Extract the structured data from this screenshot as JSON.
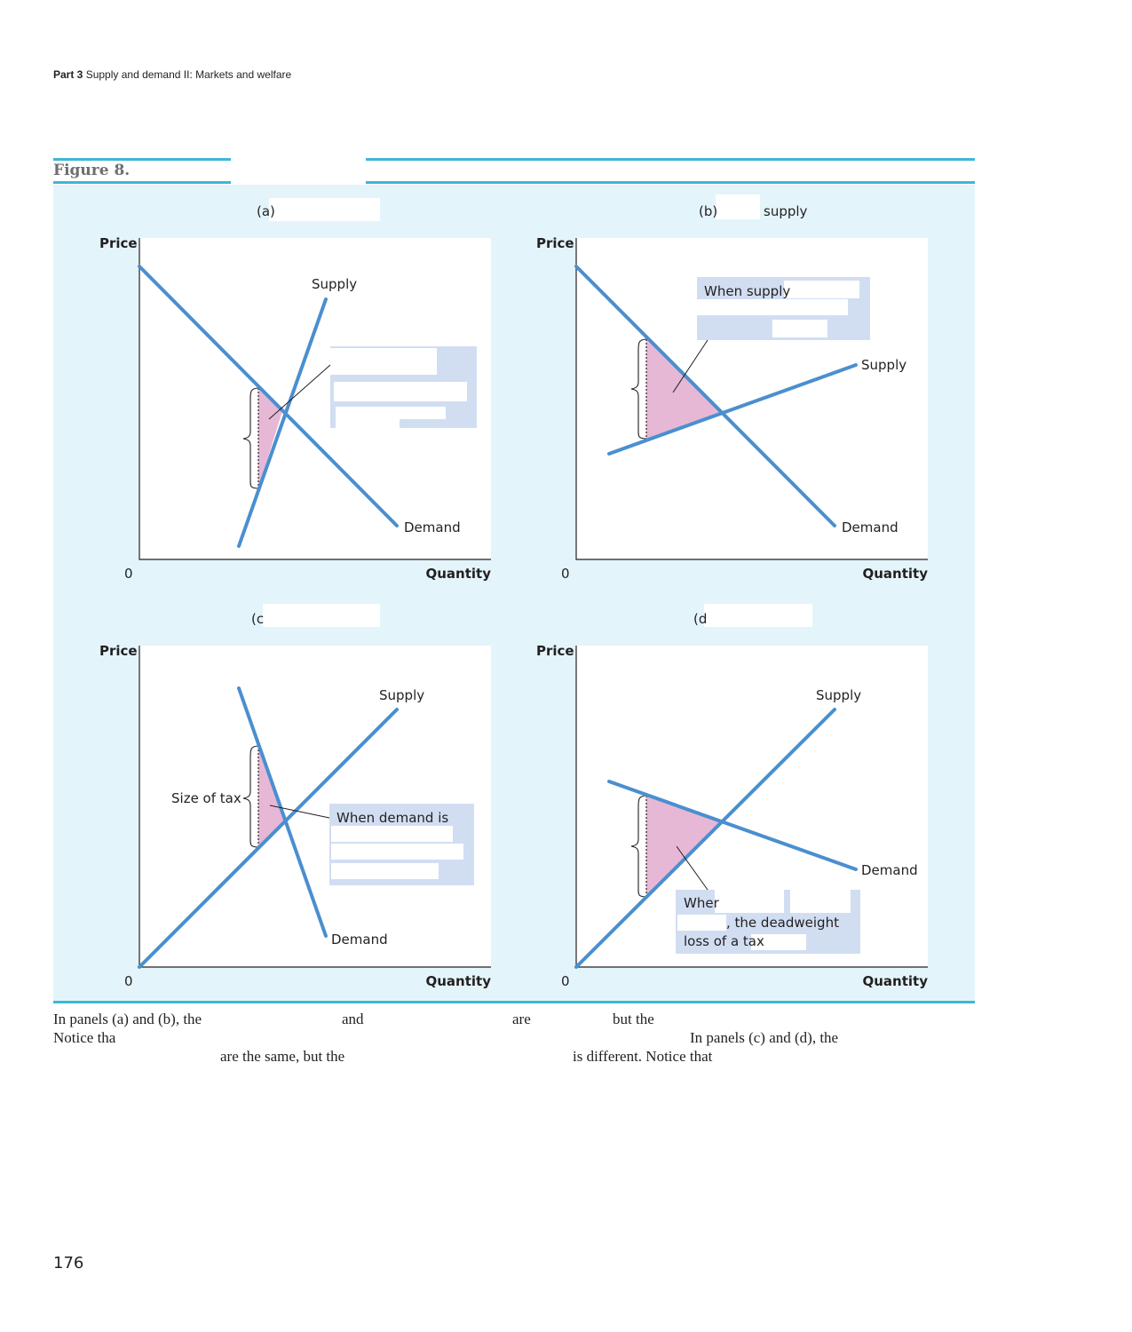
{
  "running_head": {
    "part": "Part 3",
    "title": "Supply and demand II: Markets and welfare"
  },
  "figure": {
    "title": "Figure 8.",
    "panels": [
      {
        "heading": "(a)",
        "y_axis": "Price",
        "x_axis": "Quantity",
        "origin": "0",
        "supply_label": "Supply",
        "demand_label": "Demand",
        "brace_label": "",
        "callout": ""
      },
      {
        "heading": "(b)",
        "heading_tail": "supply",
        "y_axis": "Price",
        "x_axis": "Quantity",
        "origin": "0",
        "supply_label": "Supply",
        "demand_label": "Demand",
        "brace_label": "",
        "callout": "When supply"
      },
      {
        "heading": "(c",
        "y_axis": "Price",
        "x_axis": "Quantity",
        "origin": "0",
        "supply_label": "Supply",
        "demand_label": "Demand",
        "brace_label": "Size of tax",
        "callout": "When demand is"
      },
      {
        "heading": "(d",
        "y_axis": "Price",
        "x_axis": "Quantity",
        "origin": "0",
        "supply_label": "Supply",
        "demand_label": "Demand",
        "brace_label": "",
        "callout_line1": "Wher",
        "callout_line2": ", the deadweight",
        "callout_line3": "loss of a tax"
      }
    ],
    "colors": {
      "panel_bg": "#e3f5fb",
      "rule": "#3fb6d8",
      "curve": "#4a8fcf",
      "deadweight": "#e6b8d6",
      "callout_bg": "#d1def2"
    }
  },
  "caption": {
    "line1": [
      "In panels (a) and (b), the",
      "and",
      "are",
      "but the"
    ],
    "line2": [
      "Notice tha",
      "In panels (c) and (d), the"
    ],
    "line3": [
      "are the same, but the",
      "is different. Notice that"
    ]
  },
  "page_number": "176"
}
